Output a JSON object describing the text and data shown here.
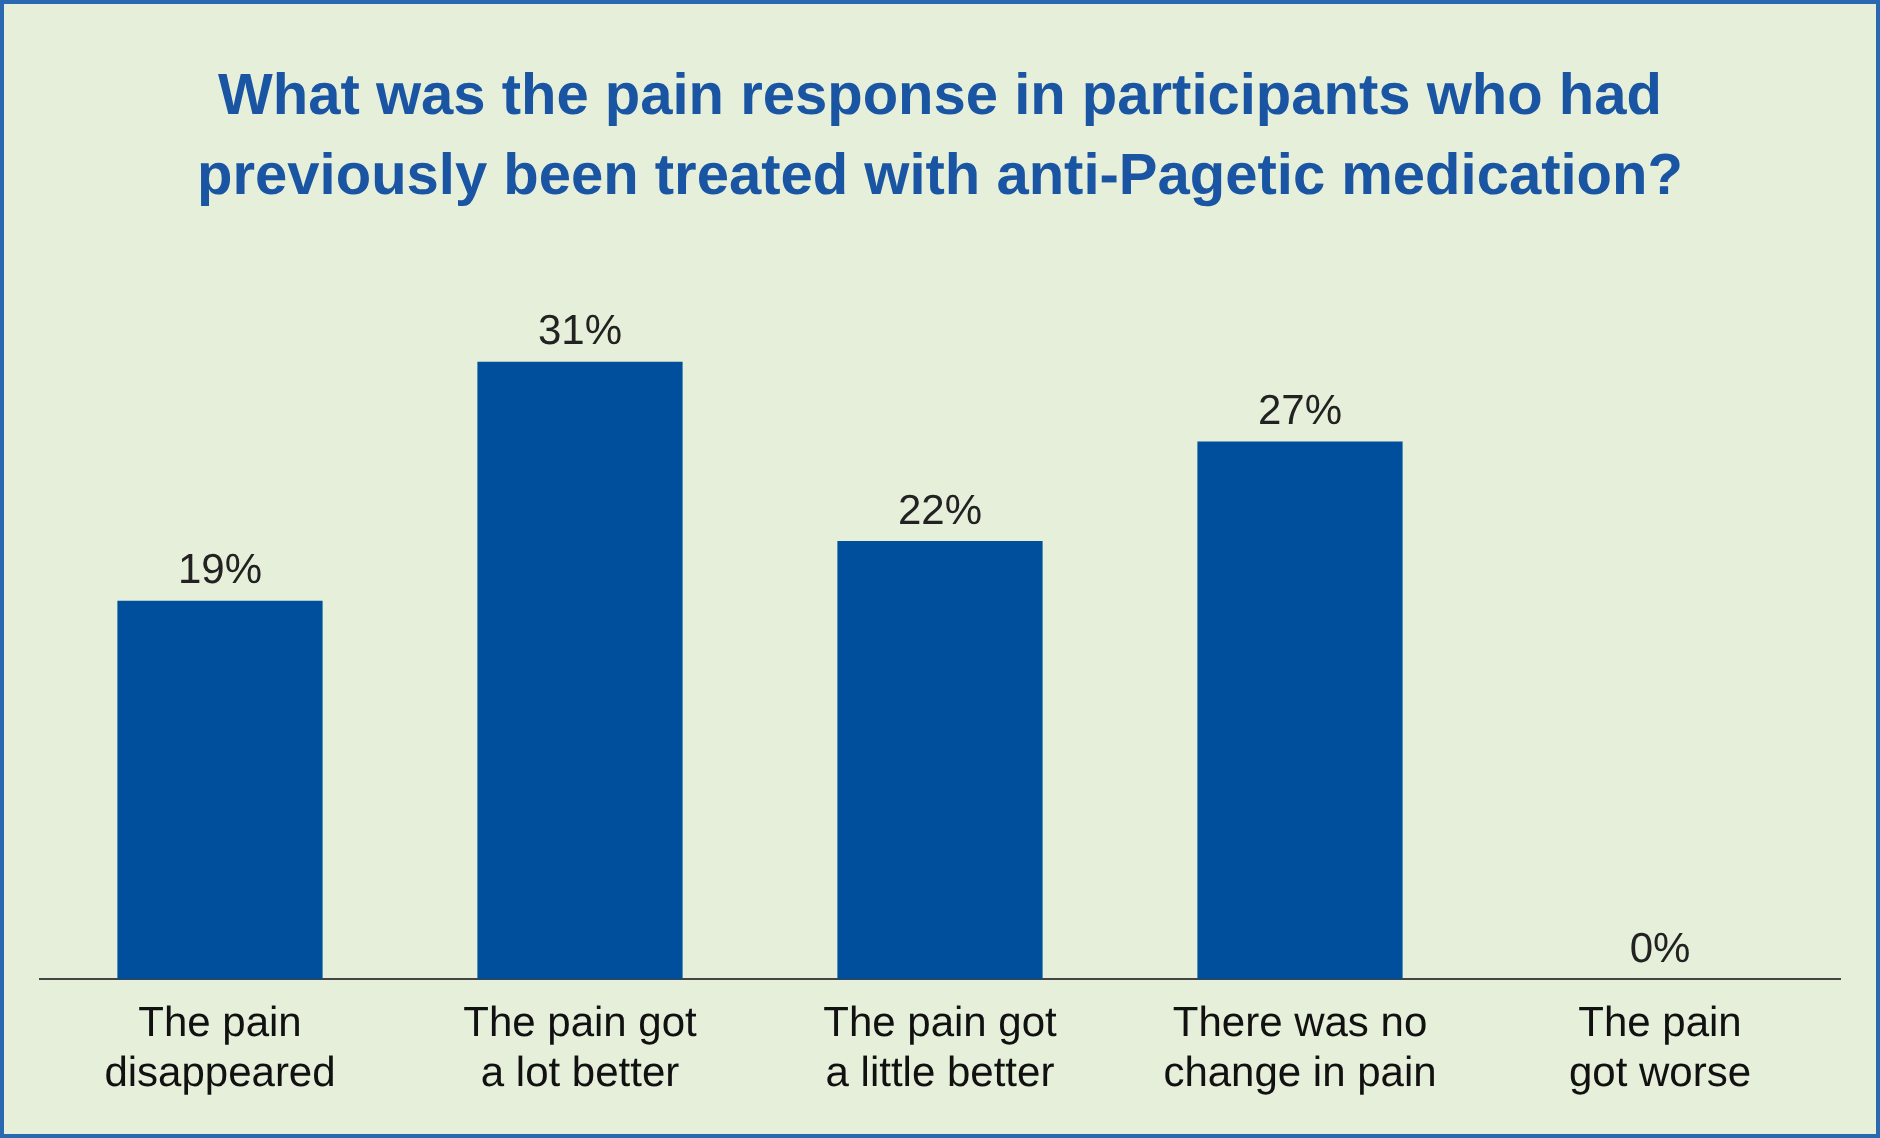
{
  "chart_data": {
    "type": "bar",
    "title": "What was the pain response in participants who had previously been treated with anti-Pagetic medication?",
    "categories": [
      "The pain disappeared",
      "The pain got a lot better",
      "The pain got a little better",
      "There was no change in pain",
      "The pain got worse"
    ],
    "values": [
      19,
      31,
      22,
      27,
      0
    ],
    "value_labels": [
      "19%",
      "31%",
      "22%",
      "27%",
      "0%"
    ],
    "color": "#004f9c",
    "grid": false,
    "legend": false
  }
}
